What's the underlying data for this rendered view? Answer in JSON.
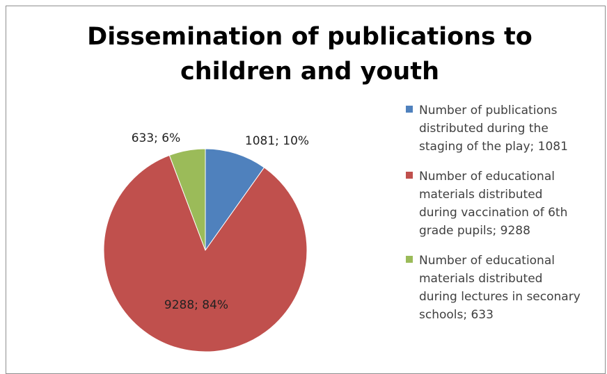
{
  "chart_data": {
    "type": "pie",
    "title": "Dissemination of publications to children and youth",
    "title_lines": [
      "Dissemination of publications to",
      "children and youth"
    ],
    "legend_position": "right",
    "slices": [
      {
        "name": "Number of publications distributed during the staging of the play; 1081",
        "legend_lines": [
          "Number of publications",
          "distributed during the",
          "staging of the play; 1081"
        ],
        "value": 1081,
        "percent": 10,
        "label": "1081; 10%",
        "color": "#4f81bd"
      },
      {
        "name": "Number of educational materials distributed during vaccination of 6th grade pupils; 9288",
        "legend_lines": [
          "Number of educational",
          "materials distributed",
          "during vaccination of 6th",
          "grade pupils; 9288"
        ],
        "value": 9288,
        "percent": 84,
        "label": "9288; 84%",
        "color": "#c0504d"
      },
      {
        "name": "Number of educational materials distributed during lectures in seconary schools; 633",
        "legend_lines": [
          "Number of educational",
          "materials distributed",
          "during lectures in seconary",
          "schools; 633"
        ],
        "value": 633,
        "percent": 6,
        "label": "633; 6%",
        "color": "#9bbb59"
      }
    ]
  }
}
